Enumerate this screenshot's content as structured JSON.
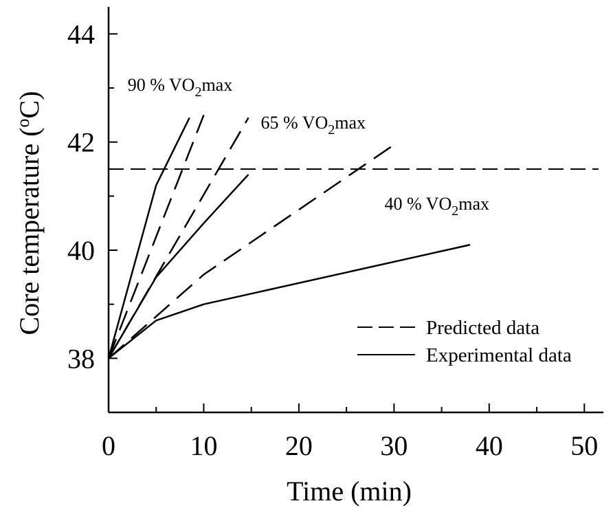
{
  "chart_data": {
    "type": "line",
    "title": "",
    "xlabel": "Time (min)",
    "ylabel": "Core temperature",
    "ylabel_unit": "C",
    "ylabel_unit_sup": "o",
    "xlim": [
      0,
      52
    ],
    "ylim": [
      37,
      44.5
    ],
    "x_ticks": [
      0,
      10,
      20,
      30,
      40,
      50
    ],
    "x_tick_labels": [
      "0",
      "10",
      "20",
      "30",
      "40",
      "50"
    ],
    "y_ticks": [
      38,
      40,
      42,
      44
    ],
    "y_tick_labels": [
      "38",
      "40",
      "42",
      "44"
    ],
    "grid": false,
    "legend_position": "lower-right",
    "legend": [
      {
        "label": "Predicted data",
        "style": "dashed"
      },
      {
        "label": "Experimental data",
        "style": "solid"
      }
    ],
    "threshold_line": {
      "y": 41.5,
      "x_range": [
        0,
        51.5
      ],
      "style": "dashed"
    },
    "annotations": [
      {
        "prefix": "90 % VO",
        "sub": "2",
        "suffix": "max",
        "x": 2,
        "y": 42.95
      },
      {
        "prefix": "65 % VO",
        "sub": "2",
        "suffix": "max",
        "x": 16,
        "y": 42.25
      },
      {
        "prefix": "40 % VO",
        "sub": "2",
        "suffix": "max",
        "x": 29,
        "y": 40.75
      }
    ],
    "series": [
      {
        "group": "90 % VO2max",
        "kind": "predicted",
        "style": "dashed",
        "x": [
          0,
          10
        ],
        "y": [
          38,
          42.5
        ]
      },
      {
        "group": "90 % VO2max",
        "kind": "experimental",
        "style": "solid",
        "x": [
          0,
          5,
          8.5
        ],
        "y": [
          38,
          41.2,
          42.45
        ]
      },
      {
        "group": "65 % VO2max",
        "kind": "predicted",
        "style": "dashed",
        "x": [
          0,
          14.7
        ],
        "y": [
          38,
          42.45
        ]
      },
      {
        "group": "65 % VO2max",
        "kind": "experimental",
        "style": "solid",
        "x": [
          0,
          5,
          10,
          14.7
        ],
        "y": [
          38,
          39.5,
          40.5,
          41.4
        ]
      },
      {
        "group": "40 % VO2max",
        "kind": "predicted",
        "style": "dashed",
        "x": [
          0,
          10,
          30
        ],
        "y": [
          38,
          39.55,
          41.95
        ]
      },
      {
        "group": "40 % VO2max",
        "kind": "experimental",
        "style": "solid",
        "x": [
          0,
          5,
          10,
          38
        ],
        "y": [
          38,
          38.7,
          39,
          40.1
        ]
      }
    ]
  }
}
